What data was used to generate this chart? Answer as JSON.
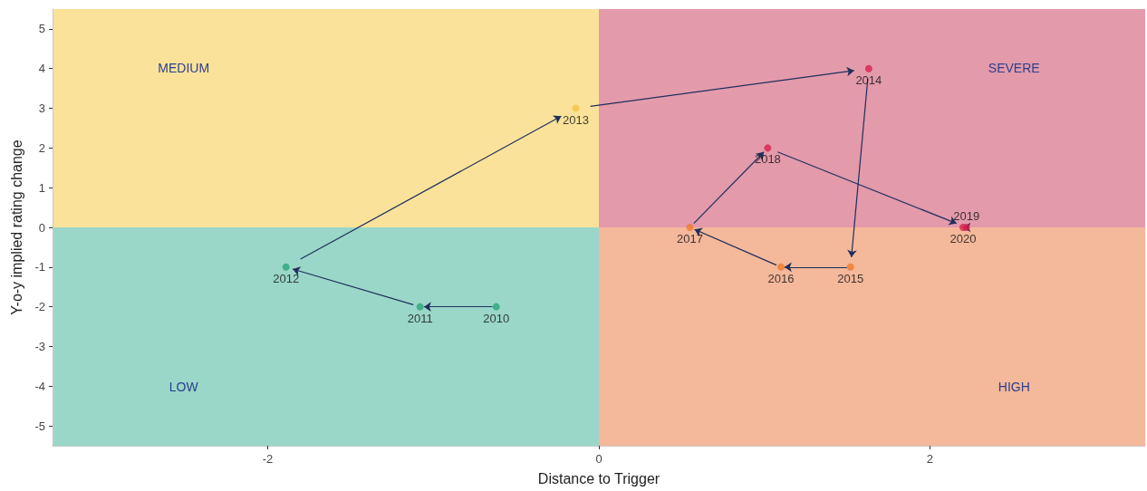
{
  "chart_data": {
    "type": "scatter",
    "xlabel": "Distance to Trigger",
    "ylabel": "Y-o-y implied rating change",
    "x": [
      -0.62,
      -1.08,
      -1.89,
      -0.14,
      1.63,
      1.52,
      1.1,
      0.55,
      1.02,
      2.22,
      2.2
    ],
    "values": [
      -2,
      -2,
      -1,
      3,
      4,
      -1,
      -1,
      0,
      2,
      0,
      0
    ],
    "colors": [
      "#2aa67a",
      "#2aa67a",
      "#2aa67a",
      "#f2c744",
      "#d6204e",
      "#f07a2a",
      "#f07a2a",
      "#f07a2a",
      "#d6204e",
      "#d6204e",
      "#d6204e"
    ],
    "xlim": [
      -3.3,
      3.3
    ],
    "xticks": [
      -2,
      0,
      2
    ],
    "ylim": [
      -5.5,
      5.5
    ],
    "yticks": [
      -5,
      -4,
      -3,
      -2,
      -1,
      0,
      1,
      2,
      3,
      4,
      5
    ],
    "marker": "circle",
    "annotations": [
      "MEDIUM",
      "SEVERE",
      "LOW",
      "HIGH",
      {
        "text": "2010",
        "x": -0.62,
        "y": -2
      },
      {
        "text": "2011",
        "x": -1.08,
        "y": -2
      },
      {
        "text": "2012",
        "x": -1.89,
        "y": -1
      },
      {
        "text": "2013",
        "x": -0.14,
        "y": 3
      },
      {
        "text": "2014",
        "x": 1.63,
        "y": 4
      },
      {
        "text": "2015",
        "x": 1.52,
        "y": -1
      },
      {
        "text": "2016",
        "x": 1.1,
        "y": -1
      },
      {
        "text": "2017",
        "x": 0.55,
        "y": 0
      },
      {
        "text": "2018",
        "x": 1.02,
        "y": 2
      },
      {
        "text": "2019",
        "x": 2.22,
        "y": 0
      },
      {
        "text": "2020",
        "x": 2.2,
        "y": 0
      }
    ]
  }
}
